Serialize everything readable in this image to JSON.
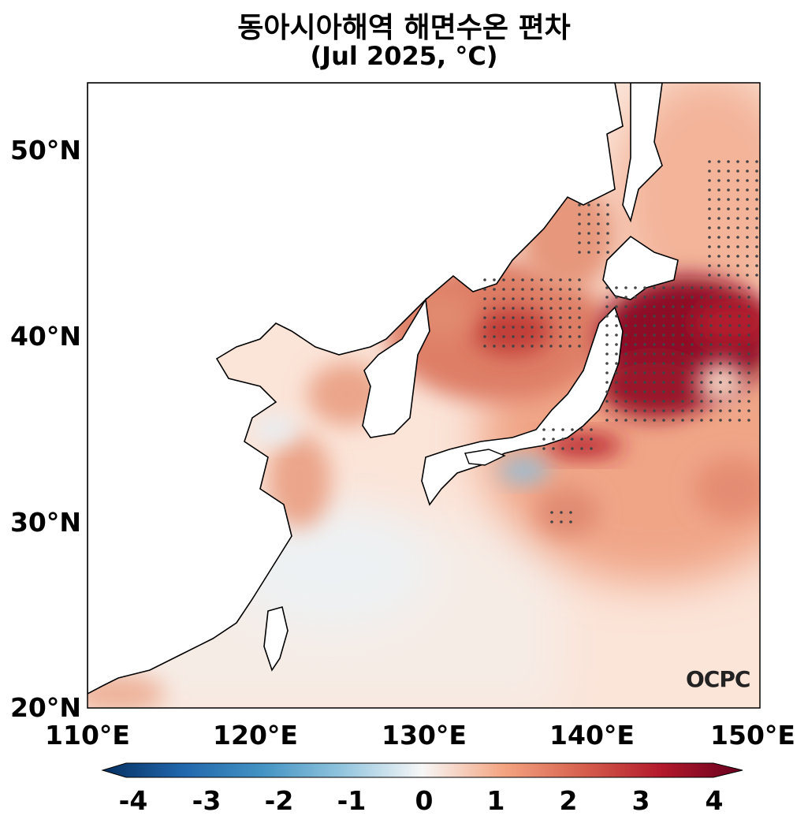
{
  "title": "동아시아해역 해면수온 편차",
  "subtitle": "(Jul 2025, °C)",
  "logo_text": "OCPC",
  "map": {
    "lon_range": [
      110,
      150
    ],
    "lat_range": [
      20,
      53.5
    ],
    "x_ticks": [
      "110°E",
      "120°E",
      "130°E",
      "140°E",
      "150°E"
    ],
    "y_ticks": [
      "50°N",
      "40°N",
      "30°N",
      "20°N"
    ],
    "colormap": "RdBu_r",
    "stipple_color": "#444444",
    "land_color": "#ffffff"
  },
  "colorbar": {
    "min": -4,
    "max": 4,
    "ticks": [
      "-4",
      "-3",
      "-2",
      "-1",
      "0",
      "1",
      "2",
      "3",
      "4"
    ],
    "extend": "both"
  },
  "colors": {
    "deep_blue": "#053061",
    "deep_red": "#67001f",
    "neutral": "#f7f7f7"
  }
}
